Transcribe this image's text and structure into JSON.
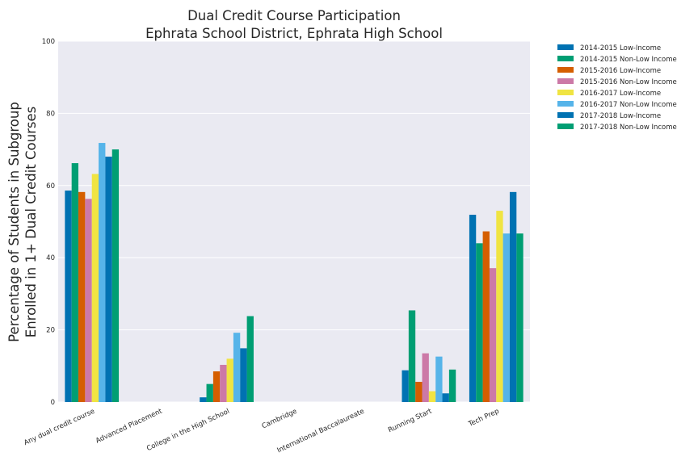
{
  "chart_data": {
    "type": "bar",
    "title": "Dual Credit Course Participation",
    "subtitle": "Ephrata School District, Ephrata High School",
    "xlabel": "",
    "ylabel_line1": "Percentage of Students in Subgroup",
    "ylabel_line2": "Enrolled in 1+ Dual Credit Courses",
    "ylim": [
      0,
      100
    ],
    "yticks": [
      "0",
      "20",
      "40",
      "60",
      "80",
      "100"
    ],
    "categories": [
      "Any dual credit course",
      "Advanced Placement",
      "College in the High School",
      "Cambridge",
      "International Baccalaureate",
      "Running Start",
      "Tech Prep"
    ],
    "legend_position": "outside-top-right",
    "series": [
      {
        "name": "2014-2015 Low-Income",
        "color": "#0072b2",
        "values": [
          58.6,
          0,
          1.3,
          0,
          0,
          8.8,
          51.9
        ]
      },
      {
        "name": "2014-2015 Non-Low Income",
        "color": "#009e73",
        "values": [
          66.2,
          0,
          5.0,
          0,
          0,
          25.4,
          44.0
        ]
      },
      {
        "name": "2015-2016 Low-Income",
        "color": "#d55e00",
        "values": [
          58.2,
          0,
          8.5,
          0,
          0,
          5.6,
          47.3
        ]
      },
      {
        "name": "2015-2016 Non-Low Income",
        "color": "#cc79a7",
        "values": [
          56.3,
          0,
          10.3,
          0,
          0,
          13.5,
          37.1
        ]
      },
      {
        "name": "2016-2017 Low-Income",
        "color": "#f0e442",
        "values": [
          63.2,
          0,
          12.0,
          0,
          0,
          3.0,
          53.0
        ]
      },
      {
        "name": "2016-2017 Non-Low Income",
        "color": "#56b4e9",
        "values": [
          71.8,
          0,
          19.2,
          0,
          0,
          12.6,
          46.7
        ]
      },
      {
        "name": "2017-2018 Low-Income",
        "color": "#0072b2",
        "values": [
          68.0,
          0,
          14.9,
          0,
          0,
          2.4,
          58.2
        ]
      },
      {
        "name": "2017-2018 Non-Low Income",
        "color": "#009e73",
        "values": [
          70.0,
          0,
          23.8,
          0,
          0,
          9.0,
          46.7
        ]
      }
    ]
  }
}
